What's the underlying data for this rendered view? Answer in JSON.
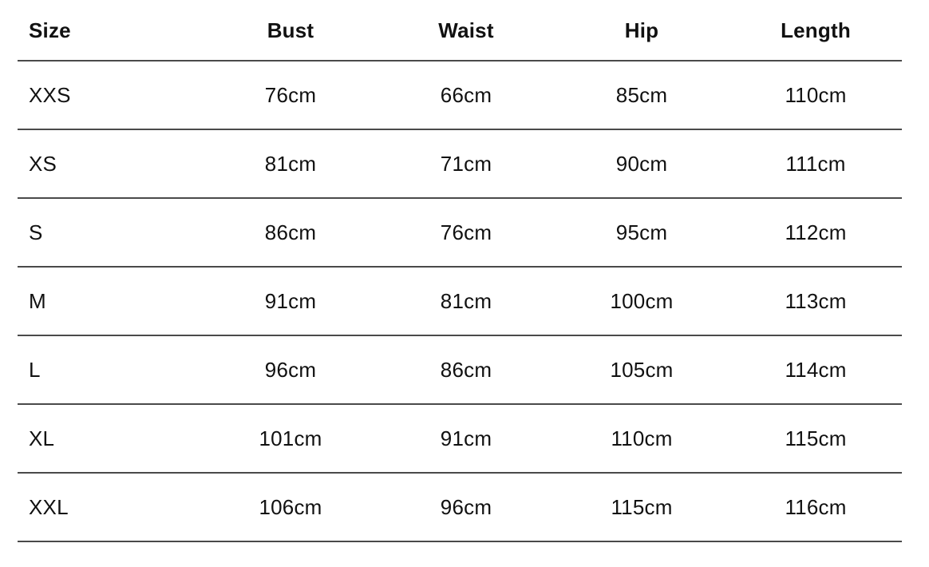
{
  "colors": {
    "text": "#111111",
    "divider": "#4a4a4a",
    "background": "#ffffff"
  },
  "chart_data": {
    "type": "table",
    "columns": [
      "Size",
      "Bust",
      "Waist",
      "Hip",
      "Length"
    ],
    "rows": [
      [
        "XXS",
        "76cm",
        "66cm",
        "85cm",
        "110cm"
      ],
      [
        "XS",
        "81cm",
        "71cm",
        "90cm",
        "111cm"
      ],
      [
        "S",
        "86cm",
        "76cm",
        "95cm",
        "112cm"
      ],
      [
        "M",
        "91cm",
        "81cm",
        "100cm",
        "113cm"
      ],
      [
        "L",
        "96cm",
        "86cm",
        "105cm",
        "114cm"
      ],
      [
        "XL",
        "101cm",
        "91cm",
        "110cm",
        "115cm"
      ],
      [
        "XXL",
        "106cm",
        "96cm",
        "115cm",
        "116cm"
      ]
    ]
  }
}
